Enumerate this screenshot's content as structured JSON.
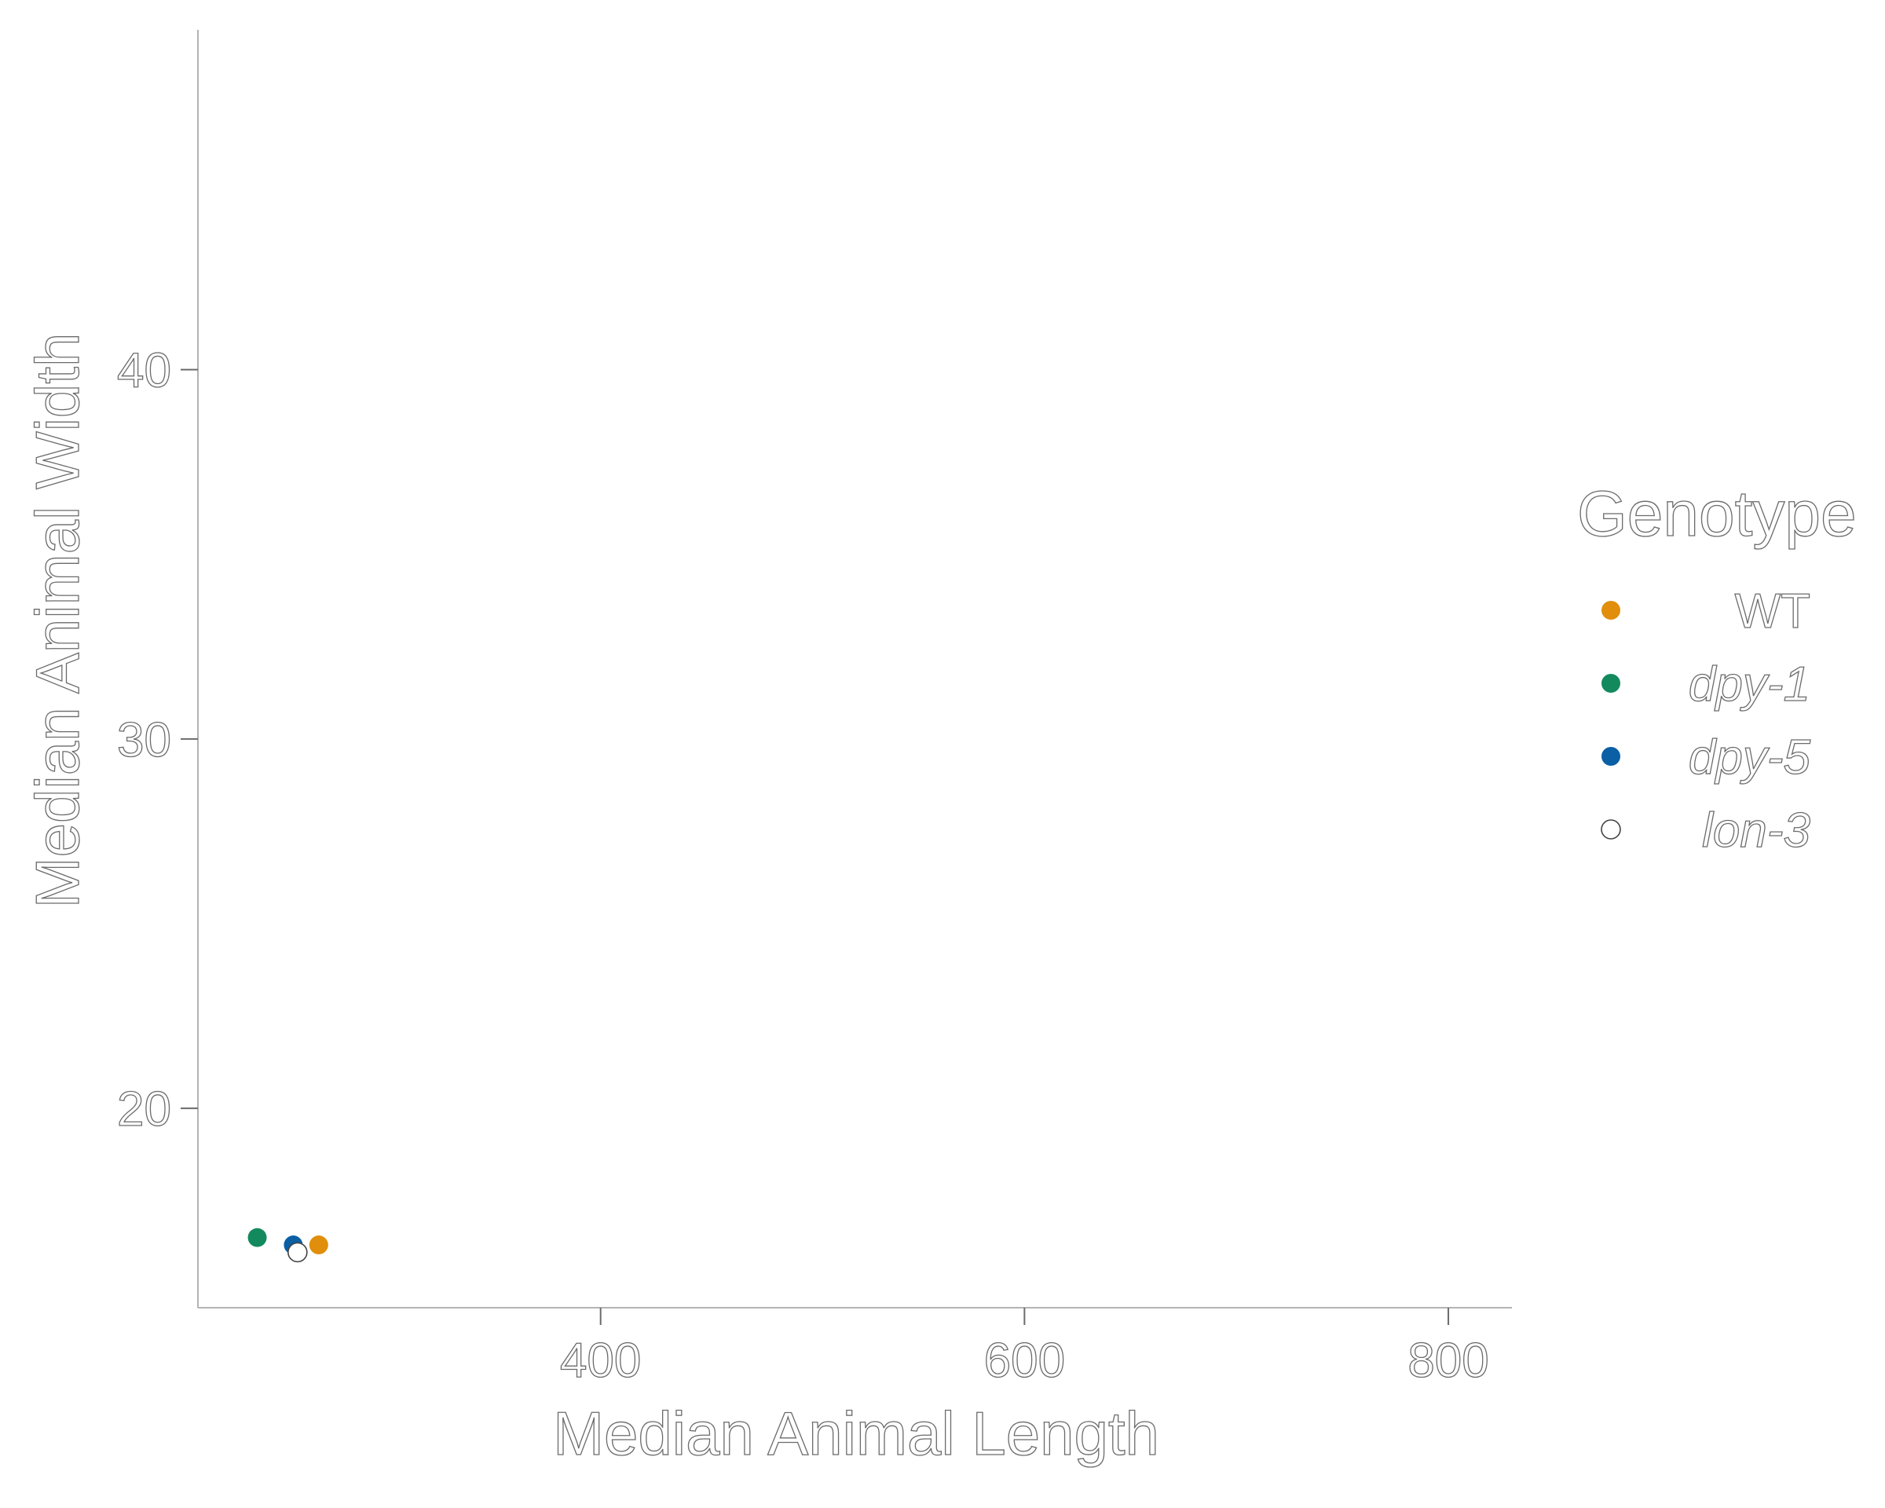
{
  "chart_data": {
    "type": "scatter",
    "title": "",
    "xlabel": "Median Animal Length",
    "ylabel": "Median Animal Width",
    "xlim": [
      210,
      830
    ],
    "ylim": [
      14.6,
      49.2
    ],
    "x_ticks": [
      400,
      600,
      800
    ],
    "y_ticks": [
      20,
      30,
      40
    ],
    "grid": false,
    "legend": {
      "title": "Genotype",
      "placement": "right"
    },
    "series": [
      {
        "name": "WT",
        "italic": false,
        "color": "#E08E0B",
        "points": [
          {
            "x": 267,
            "y": 16.3
          }
        ]
      },
      {
        "name": "dpy-1",
        "italic": true,
        "color": "#138A5E",
        "points": [
          {
            "x": 238,
            "y": 16.5
          }
        ]
      },
      {
        "name": "dpy-5",
        "italic": true,
        "color": "#0B5FA5",
        "points": [
          {
            "x": 255,
            "y": 16.3
          }
        ]
      },
      {
        "name": "lon-3",
        "italic": true,
        "color": "#FFFFFF",
        "points": [
          {
            "x": 257,
            "y": 16.1
          }
        ]
      }
    ]
  }
}
